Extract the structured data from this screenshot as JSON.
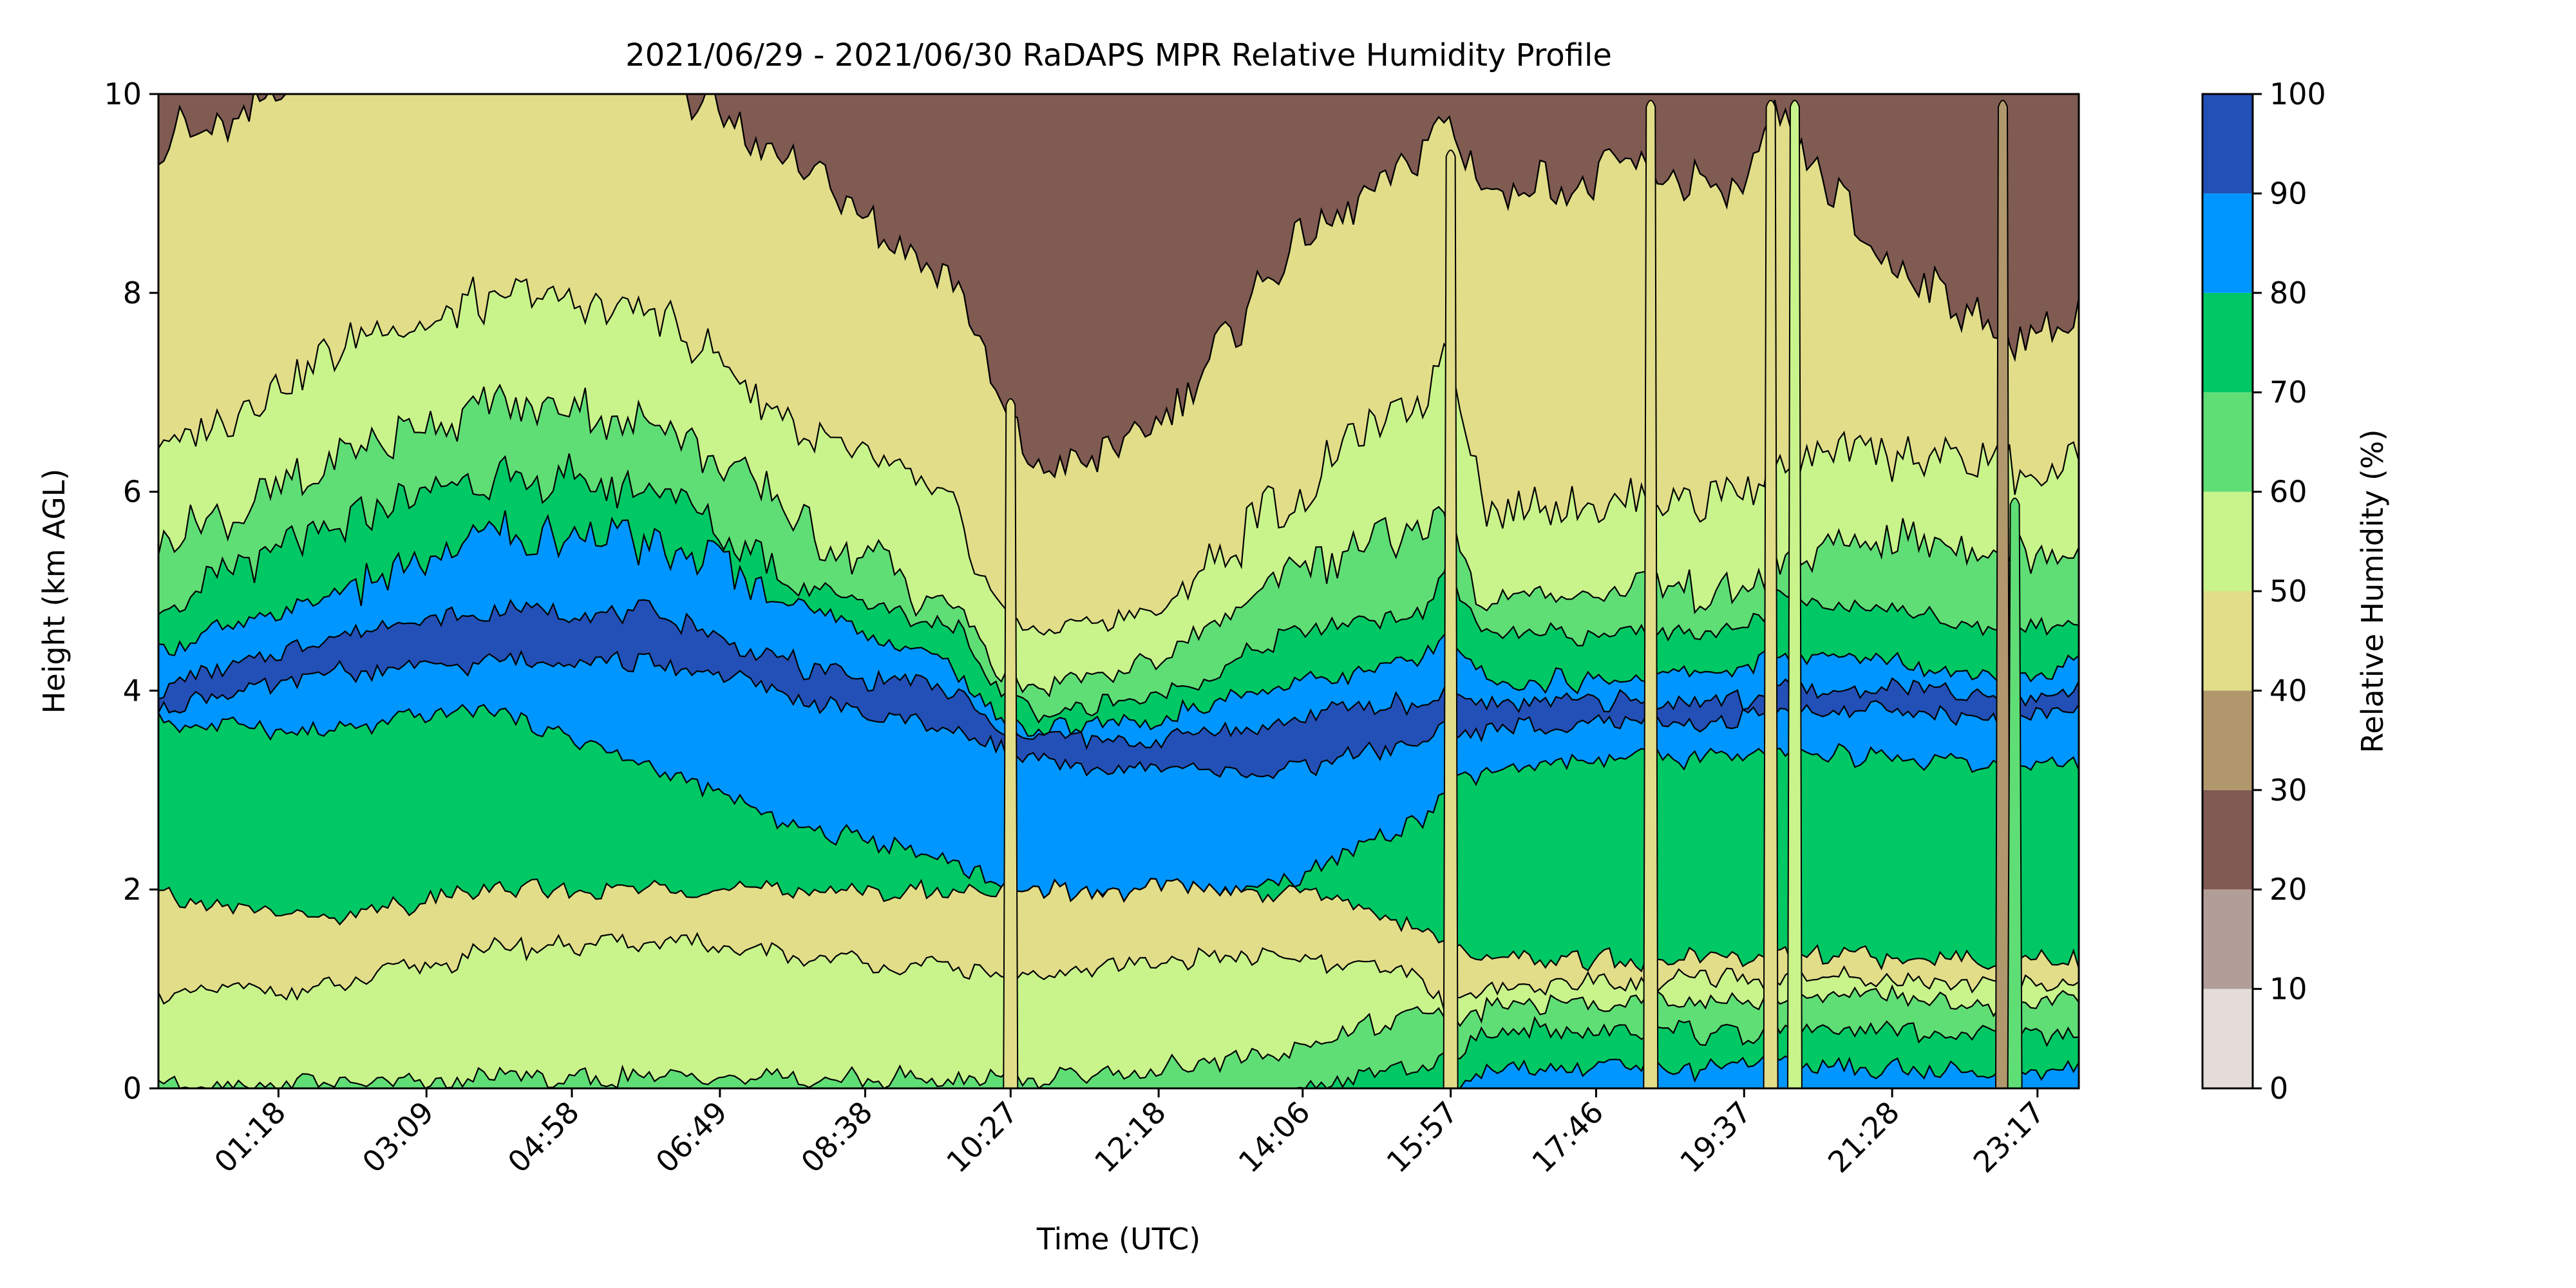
{
  "chart_data": {
    "type": "heatmap",
    "subtype": "filled-contour",
    "title": "2021/06/29 - 2021/06/30 RaDAPS MPR Relative Humidity Profile",
    "xlabel": "Time (UTC)",
    "ylabel": "Height (km AGL)",
    "x_tick_labels": [
      "01:18",
      "03:09",
      "04:58",
      "06:49",
      "08:38",
      "10:27",
      "12:18",
      "14:06",
      "15:57",
      "17:46",
      "19:37",
      "21:28",
      "23:17"
    ],
    "x_tick_hours": [
      1.3,
      3.15,
      4.967,
      6.817,
      8.633,
      10.45,
      12.3,
      14.1,
      15.95,
      17.767,
      19.617,
      21.467,
      23.283
    ],
    "xlim_hours": [
      -0.2,
      23.8
    ],
    "ylim": [
      0,
      10
    ],
    "y_ticks": [
      0,
      2,
      4,
      6,
      8,
      10
    ],
    "colorbar": {
      "label": "Relative Humidity (%)",
      "ticks": [
        0,
        10,
        20,
        30,
        40,
        50,
        60,
        70,
        80,
        90,
        100
      ],
      "levels": [
        {
          "min": 0,
          "max": 10,
          "color": "#e3dcd9"
        },
        {
          "min": 10,
          "max": 20,
          "color": "#b29e98"
        },
        {
          "min": 20,
          "max": 30,
          "color": "#805b52"
        },
        {
          "min": 30,
          "max": 40,
          "color": "#b1976c"
        },
        {
          "min": 40,
          "max": 50,
          "color": "#e2dd89"
        },
        {
          "min": 50,
          "max": 60,
          "color": "#c9f48b"
        },
        {
          "min": 60,
          "max": 70,
          "color": "#60de76"
        },
        {
          "min": 70,
          "max": 80,
          "color": "#00c864"
        },
        {
          "min": 80,
          "max": 90,
          "color": "#0096ff"
        },
        {
          "min": 90,
          "max": 100,
          "color": "#2350b6"
        }
      ]
    },
    "contour_boundaries": {
      "time_hours": [
        -0.2,
        2.0,
        4.0,
        6.0,
        8.0,
        9.8,
        10.3,
        10.8,
        12.3,
        14.0,
        15.6,
        15.9,
        16.4,
        18.2,
        19.6,
        20.0,
        21.5,
        23.0,
        23.8
      ],
      "levels": [
        {
          "rh": 10,
          "km": [
            1,
            1,
            1,
            1,
            1,
            1,
            1,
            1,
            1,
            1,
            1,
            1,
            1,
            1,
            1,
            1,
            1,
            1,
            1
          ]
        },
        {
          "rh": 20,
          "km": [
            9.5,
            10.2,
            10.5,
            10.2,
            9.2,
            8.0,
            6.8,
            6.2,
            6.6,
            8.5,
            9.5,
            9.8,
            9.0,
            9.2,
            9.0,
            9.8,
            8.2,
            7.5,
            7.8
          ]
        },
        {
          "rh": 30,
          "km": [
            6.4,
            7.4,
            8.0,
            7.8,
            6.5,
            5.8,
            4.8,
            4.6,
            4.8,
            6.0,
            7.0,
            7.5,
            5.8,
            5.9,
            6.0,
            6.2,
            6.4,
            6.2,
            6.3
          ]
        },
        {
          "rh": 40,
          "km": [
            5.4,
            6.3,
            6.9,
            6.7,
            5.6,
            4.8,
            4.2,
            4.0,
            4.3,
            5.2,
            5.6,
            5.8,
            4.9,
            5.0,
            5.1,
            5.4,
            5.5,
            5.3,
            5.5
          ]
        },
        {
          "rh": 50,
          "km": [
            4.8,
            5.6,
            6.2,
            6.0,
            5.0,
            4.6,
            4.0,
            3.8,
            3.9,
            4.6,
            4.8,
            5.2,
            4.5,
            4.6,
            4.6,
            4.9,
            4.8,
            4.6,
            4.7
          ]
        },
        {
          "rh": 60,
          "km": [
            4.4,
            5.0,
            5.6,
            5.5,
            4.8,
            4.2,
            3.7,
            3.6,
            3.7,
            4.1,
            4.3,
            4.5,
            4.1,
            4.1,
            4.2,
            4.4,
            4.3,
            4.1,
            4.3
          ]
        },
        {
          "rh": 70,
          "km": [
            4.0,
            4.6,
            4.8,
            4.8,
            4.2,
            4.0,
            3.6,
            3.5,
            3.5,
            3.7,
            3.9,
            4.0,
            3.9,
            3.9,
            3.9,
            4.0,
            4.0,
            3.9,
            4.0
          ]
        },
        {
          "rh": 80,
          "km": [
            3.8,
            4.2,
            4.3,
            4.3,
            3.9,
            3.6,
            3.4,
            3.3,
            3.2,
            3.2,
            3.5,
            3.6,
            3.6,
            3.7,
            3.7,
            3.8,
            3.8,
            3.7,
            3.8
          ]
        },
        {
          "rh": 90,
          "km": [
            3.7,
            3.6,
            3.8,
            3.2,
            2.6,
            2.3,
            2.0,
            1.8,
            1.9,
            2.1,
            2.7,
            3.0,
            3.2,
            3.3,
            3.3,
            3.4,
            3.3,
            3.2,
            3.3
          ]
        },
        {
          "rh": 90,
          "km": [
            1.9,
            1.7,
            2.0,
            2.0,
            2.0,
            2.0,
            2.0,
            2.0,
            2.0,
            2.0,
            1.6,
            1.4,
            1.3,
            1.3,
            1.3,
            1.4,
            1.3,
            1.3,
            1.3
          ]
        },
        {
          "rh": 80,
          "km": [
            0.9,
            1.0,
            1.4,
            1.5,
            1.3,
            1.2,
            1.1,
            1.1,
            1.3,
            1.3,
            1.1,
            0.9,
            1.0,
            1.1,
            1.1,
            1.1,
            1.1,
            1.0,
            1.1
          ]
        },
        {
          "rh": 70,
          "km": [
            0.05,
            0.05,
            0.1,
            0.1,
            0.1,
            0.1,
            0.1,
            0.1,
            0.2,
            0.4,
            0.8,
            0.7,
            0.8,
            0.9,
            0.9,
            0.9,
            0.9,
            0.8,
            0.9
          ]
        },
        {
          "rh": 60,
          "km": [
            0,
            0,
            0,
            0,
            0,
            0,
            0,
            0,
            0,
            0,
            0.2,
            0.3,
            0.6,
            0.6,
            0.5,
            0.6,
            0.6,
            0.5,
            0.6
          ]
        },
        {
          "rh": 50,
          "km": [
            0,
            0,
            0,
            0,
            0,
            0,
            0,
            0,
            0,
            0,
            0,
            0,
            0.2,
            0.2,
            0.2,
            0.3,
            0.2,
            0.2,
            0.2
          ]
        }
      ]
    },
    "band_colors_bottom_to_top": [
      "#0096ff",
      "#00c864",
      "#60de76",
      "#c9f48b",
      "#e2dd89",
      "#00c864",
      "#0096ff",
      "#2350b6",
      "#0096ff",
      "#00c864",
      "#60de76",
      "#c9f48b",
      "#e2dd89",
      "#b1976c",
      "#805b52",
      "#b29e98"
    ],
    "spikes": [
      {
        "time_hours": 10.45,
        "top_km": 7.0,
        "bottom_km": 0,
        "rh_color": "#e2dd89"
      },
      {
        "time_hours": 15.95,
        "top_km": 9.5,
        "bottom_km": 0,
        "rh_color": "#e2dd89"
      },
      {
        "time_hours": 18.45,
        "top_km": 10,
        "bottom_km": 0,
        "rh_color": "#e2dd89"
      },
      {
        "time_hours": 19.95,
        "top_km": 10,
        "bottom_km": 0,
        "rh_color": "#e2dd89"
      },
      {
        "time_hours": 20.25,
        "top_km": 10,
        "bottom_km": 0,
        "rh_color": "#c9f48b"
      },
      {
        "time_hours": 22.85,
        "top_km": 10,
        "bottom_km": 0,
        "rh_color": "#b1976c"
      },
      {
        "time_hours": 23.0,
        "top_km": 6.0,
        "bottom_km": 0,
        "rh_color": "#60de76"
      }
    ],
    "grid": false,
    "legend": "colorbar-right"
  }
}
